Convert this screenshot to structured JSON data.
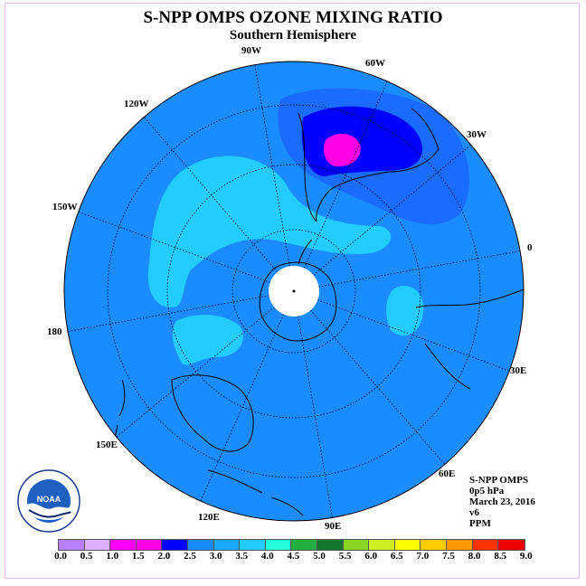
{
  "title": "S-NPP OMPS OZONE MIXING RATIO",
  "subtitle": "Southern Hemisphere",
  "longitude_labels": [
    "90W",
    "60W",
    "30W",
    "0",
    "30E",
    "60E",
    "90E",
    "120E",
    "150E",
    "180",
    "150W",
    "120W"
  ],
  "info": {
    "instrument": "S-NPP OMPS",
    "pressure": "0p5 hPa",
    "date": "March 23, 2016",
    "version": "v6",
    "units": "PPM"
  },
  "colorbar": {
    "ticks": [
      "0.0",
      "0.5",
      "1.0",
      "1.5",
      "2.0",
      "2.5",
      "3.0",
      "3.5",
      "4.0",
      "4.5",
      "5.0",
      "5.5",
      "6.0",
      "6.5",
      "7.0",
      "7.5",
      "8.0",
      "8.5",
      "9.0"
    ],
    "colors": [
      "#b87fff",
      "#dfb0ff",
      "#ff00ff",
      "#ff00e6",
      "#0000ff",
      "#1a8cff",
      "#1aa9ff",
      "#22ccff",
      "#22ffdd",
      "#22b040",
      "#11772a",
      "#88d622",
      "#ccee22",
      "#ffff00",
      "#ffcc00",
      "#ff9900",
      "#ff3300",
      "#ee0000",
      "#8b5a3c"
    ]
  },
  "map_colors": {
    "background_field": "#1a8cff",
    "low_region": "#22ccff",
    "mid_high_region": "#0000ff",
    "peak_region": "#ff00e6",
    "pole_mask": "#ffffff"
  },
  "logo_text": "NOAA"
}
